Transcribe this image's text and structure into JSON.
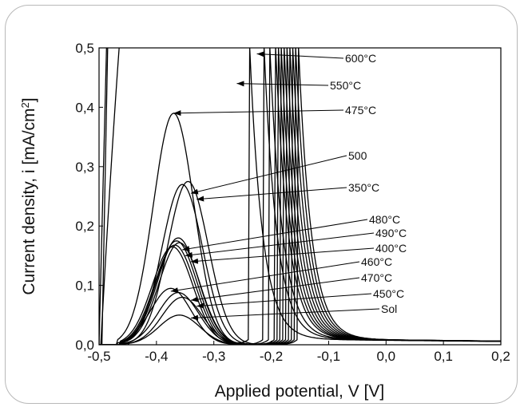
{
  "chart_data": {
    "type": "line",
    "xlabel": "Applied potential, V [V]",
    "ylabel": "Current density, i [mA/cm²]",
    "ylabel_base": "Current density, i [mA/cm",
    "ylabel_sup": "2",
    "ylabel_end": "]",
    "xlim": [
      -0.5,
      0.2
    ],
    "ylim": [
      0.0,
      0.5
    ],
    "x_ticks": [
      "-0,5",
      "-0,4",
      "-0,3",
      "-0,2",
      "-0,1",
      "0,0",
      "0,1",
      "0,2"
    ],
    "y_ticks": [
      "0,0",
      "0,1",
      "0,2",
      "0,3",
      "0,4",
      "0,5"
    ],
    "x_tick_values": [
      -0.5,
      -0.4,
      -0.3,
      -0.2,
      -0.1,
      0.0,
      0.1,
      0.2
    ],
    "y_tick_values": [
      0.0,
      0.1,
      0.2,
      0.3,
      0.4,
      0.5
    ],
    "peak_width": 0.05,
    "series": [
      {
        "name": "600°C",
        "onset": -0.465,
        "peak_x": -0.362,
        "peak_y": 0.18,
        "rise_x": -0.22,
        "label_at": [
          -0.225,
          0.49
        ]
      },
      {
        "name": "550°C",
        "onset": -0.465,
        "peak_x": -0.365,
        "peak_y": 0.175,
        "rise_x": -0.255,
        "label_at": [
          -0.26,
          0.44
        ]
      },
      {
        "name": "475°C",
        "onset": -0.47,
        "peak_x": -0.37,
        "peak_y": 0.39,
        "rise_x": -0.19,
        "label_at": [
          -0.37,
          0.39
        ]
      },
      {
        "name": "500",
        "onset": -0.465,
        "peak_x": -0.355,
        "peak_y": 0.27,
        "rise_x": -0.175,
        "label_at": [
          -0.34,
          0.255
        ]
      },
      {
        "name": "350°C",
        "onset": -0.46,
        "peak_x": -0.345,
        "peak_y": 0.275,
        "rise_x": -0.17,
        "label_at": [
          -0.33,
          0.245
        ]
      },
      {
        "name": "480°C",
        "onset": -0.46,
        "peak_x": -0.36,
        "peak_y": 0.172,
        "rise_x": -0.185,
        "label_at": [
          -0.355,
          0.16
        ]
      },
      {
        "name": "490°C",
        "onset": -0.465,
        "peak_x": -0.368,
        "peak_y": 0.168,
        "rise_x": -0.195,
        "label_at": [
          -0.35,
          0.15
        ]
      },
      {
        "name": "400°C",
        "onset": -0.465,
        "peak_x": -0.372,
        "peak_y": 0.165,
        "rise_x": -0.2,
        "label_at": [
          -0.34,
          0.14
        ]
      },
      {
        "name": "460°C",
        "onset": -0.47,
        "peak_x": -0.375,
        "peak_y": 0.095,
        "rise_x": -0.205,
        "label_at": [
          -0.375,
          0.09
        ]
      },
      {
        "name": "470°C",
        "onset": -0.465,
        "peak_x": -0.362,
        "peak_y": 0.088,
        "rise_x": -0.21,
        "label_at": [
          -0.34,
          0.075
        ]
      },
      {
        "name": "450°C",
        "onset": -0.46,
        "peak_x": -0.355,
        "peak_y": 0.08,
        "rise_x": -0.18,
        "label_at": [
          -0.33,
          0.065
        ]
      },
      {
        "name": "Sol",
        "onset": -0.45,
        "peak_x": -0.36,
        "peak_y": 0.05,
        "rise_x": -0.23,
        "label_at": [
          -0.34,
          0.045
        ]
      }
    ]
  }
}
